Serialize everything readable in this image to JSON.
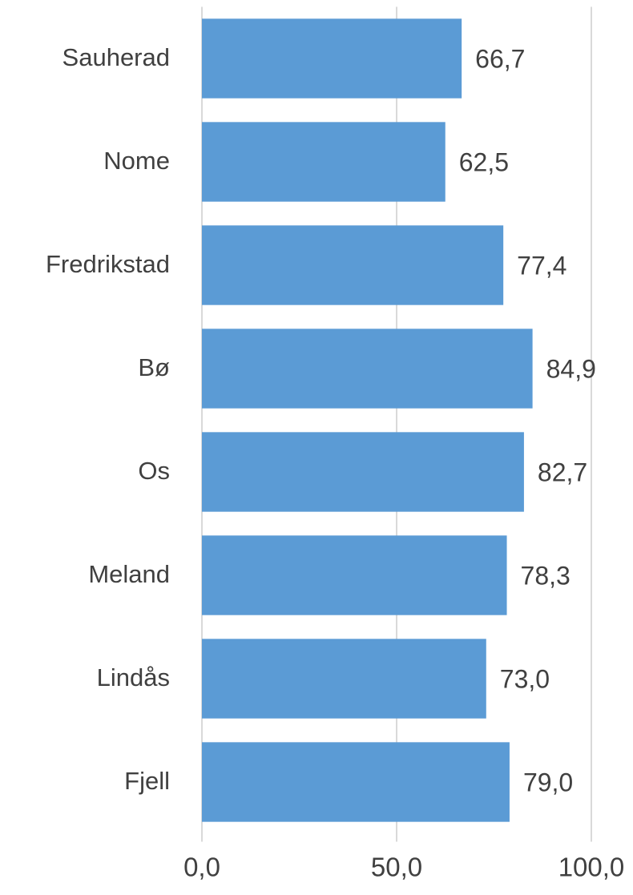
{
  "chart_data": {
    "type": "bar",
    "orientation": "horizontal",
    "categories": [
      "Sauherad",
      "Nome",
      "Fredrikstad",
      "Bø",
      "Os",
      "Meland",
      "Lindås",
      "Fjell"
    ],
    "values": [
      66.7,
      62.5,
      77.4,
      84.9,
      82.7,
      78.3,
      73.0,
      79.0
    ],
    "value_labels": [
      "66,7",
      "62,5",
      "77,4",
      "84,9",
      "82,7",
      "78,3",
      "73,0",
      "79,0"
    ],
    "color": "#5b9bd5",
    "xlim": [
      0,
      100
    ],
    "xticks": [
      {
        "value": 0,
        "label": "0,0"
      },
      {
        "value": 50,
        "label": "50,0"
      },
      {
        "value": 100,
        "label": "100,0"
      }
    ],
    "grid": true
  }
}
